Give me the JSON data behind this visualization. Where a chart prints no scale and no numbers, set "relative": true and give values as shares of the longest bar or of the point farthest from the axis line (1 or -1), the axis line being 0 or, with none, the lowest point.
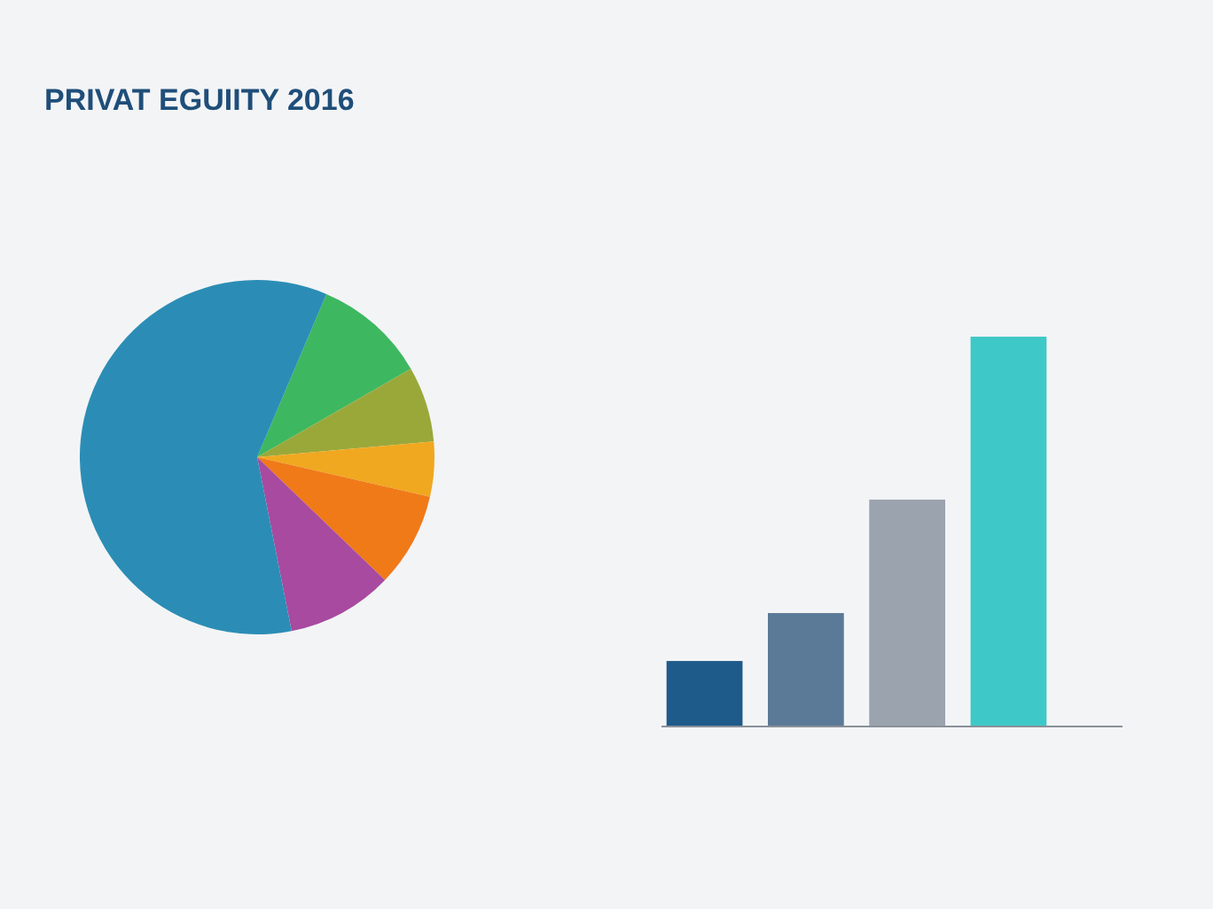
{
  "chart_data": [
    {
      "type": "pie",
      "title": "PRIVAT EGUIITY 2016",
      "categories": [
        null,
        null,
        null,
        null,
        null,
        null
      ],
      "values": [
        10.3,
        6.9,
        5.0,
        8.6,
        9.7,
        59.5
      ],
      "colors": [
        "#3db860",
        "#9aa83a",
        "#f0a820",
        "#f07a18",
        "#a84aa0",
        "#2b8db5"
      ]
    },
    {
      "type": "bar",
      "relative": true,
      "categories": [
        null,
        null,
        null,
        null
      ],
      "values": [
        0.168,
        0.291,
        0.582,
        1
      ],
      "colors": [
        "#1e5a8a",
        "#5a7a98",
        "#9aa3ae",
        "#3fc8c8"
      ]
    }
  ]
}
